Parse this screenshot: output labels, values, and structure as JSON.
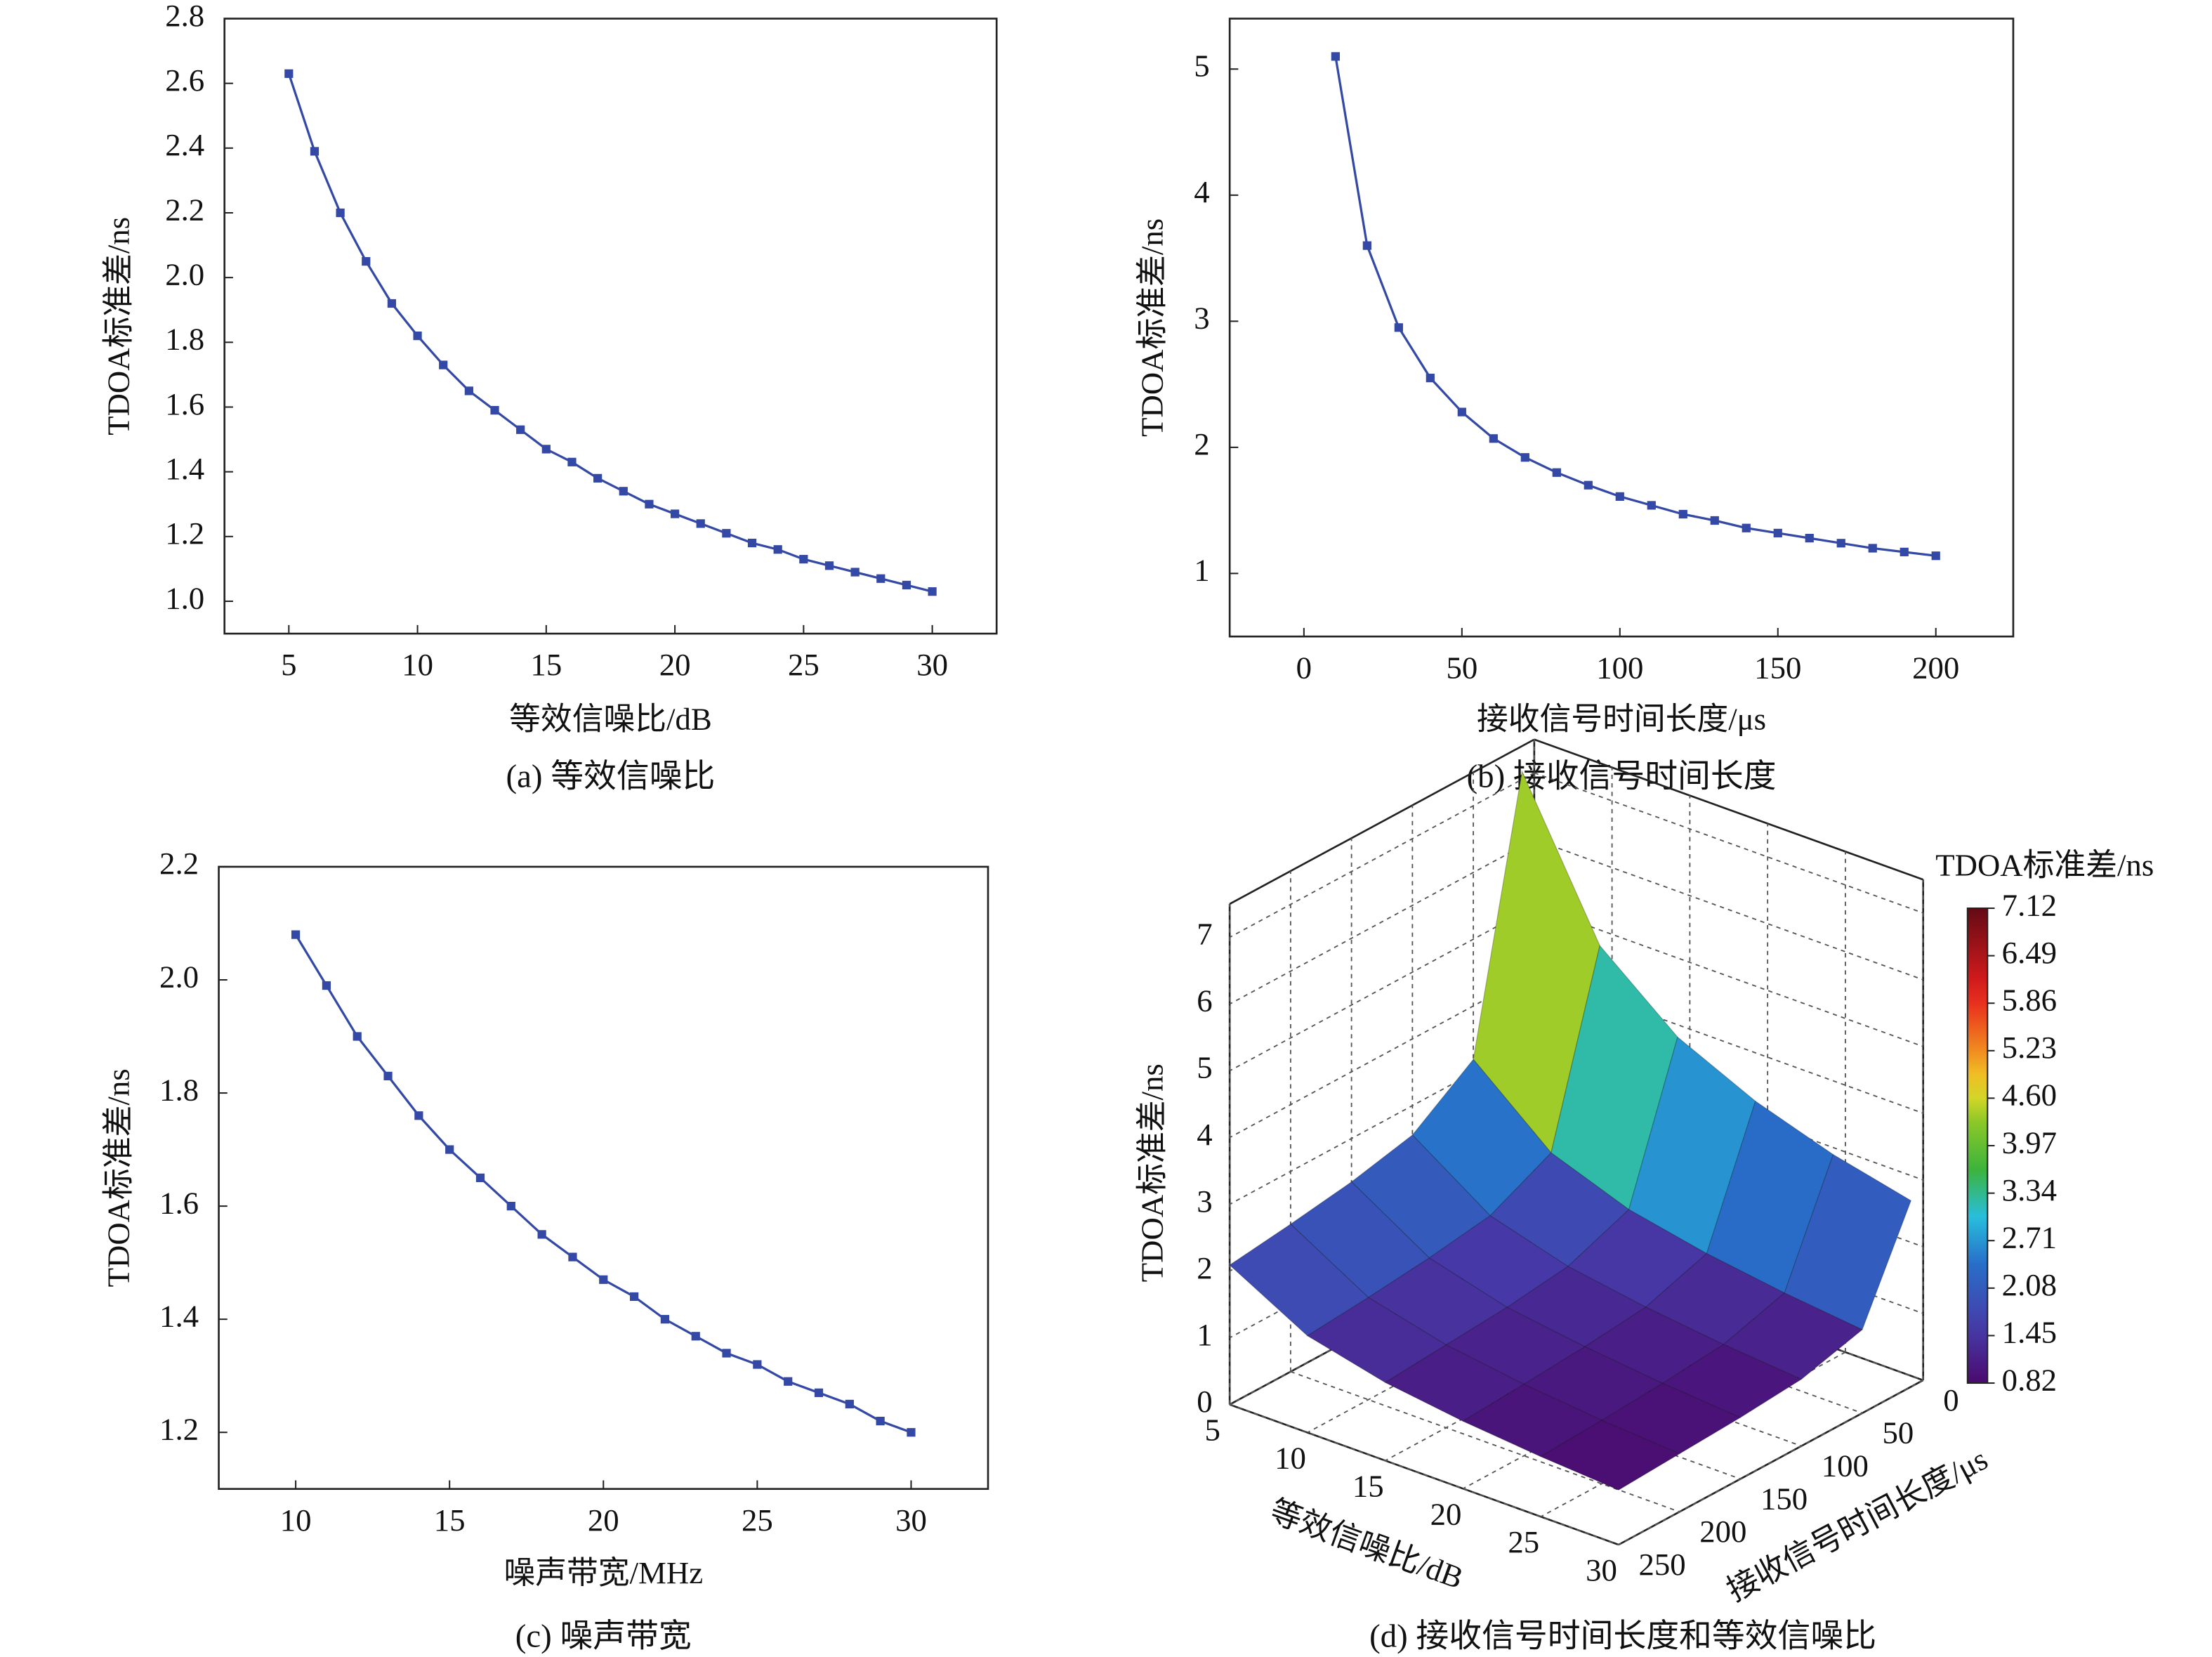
{
  "chart_data": [
    {
      "type": "line",
      "caption": "(a) 等效信噪比",
      "xlabel": "等效信噪比/dB",
      "ylabel": "TDOA标准差/ns",
      "color": "#3449a6",
      "x": [
        5,
        6,
        7,
        8,
        9,
        10,
        11,
        12,
        13,
        14,
        15,
        16,
        17,
        18,
        19,
        20,
        21,
        22,
        23,
        24,
        25,
        26,
        27,
        28,
        29,
        30
      ],
      "values": [
        2.63,
        2.39,
        2.2,
        2.05,
        1.92,
        1.82,
        1.73,
        1.65,
        1.59,
        1.53,
        1.47,
        1.43,
        1.38,
        1.34,
        1.3,
        1.27,
        1.24,
        1.21,
        1.18,
        1.16,
        1.13,
        1.11,
        1.09,
        1.07,
        1.05,
        1.03
      ],
      "xlim": [
        2.5,
        32.5
      ],
      "xticks": [
        5,
        10,
        15,
        20,
        25,
        30
      ],
      "ylim": [
        0.9,
        2.8
      ],
      "yticks": [
        {
          "value": 1,
          "label": "1.0"
        },
        1.2,
        1.4,
        1.6,
        1.8,
        {
          "value": 2,
          "label": "2.0"
        },
        2.2,
        2.4,
        2.6,
        2.8
      ]
    },
    {
      "type": "line",
      "caption": "(b) 接收信号时间长度",
      "xlabel": "接收信号时间长度/μs",
      "ylabel": "TDOA标准差/ns",
      "color": "#3449a6",
      "x": [
        10,
        20,
        30,
        40,
        50,
        60,
        70,
        80,
        90,
        100,
        110,
        120,
        130,
        140,
        150,
        160,
        170,
        180,
        190,
        200
      ],
      "values": [
        5.1,
        3.6,
        2.95,
        2.55,
        2.28,
        2.07,
        1.92,
        1.8,
        1.7,
        1.61,
        1.54,
        1.47,
        1.42,
        1.36,
        1.32,
        1.28,
        1.24,
        1.2,
        1.17,
        1.14
      ],
      "xlim": [
        -23.5,
        224.5
      ],
      "xticks": [
        0,
        50,
        100,
        150,
        200
      ],
      "ylim": [
        0.5,
        5.4
      ],
      "yticks": [
        1,
        2,
        3,
        4,
        5
      ]
    },
    {
      "type": "line",
      "caption": "(c) 噪声带宽",
      "xlabel": "噪声带宽/MHz",
      "ylabel": "TDOA标准差/ns",
      "color": "#3449a6",
      "x": [
        10,
        11,
        12,
        13,
        14,
        15,
        16,
        17,
        18,
        19,
        20,
        21,
        22,
        23,
        24,
        25,
        26,
        27,
        28,
        29,
        30
      ],
      "values": [
        2.08,
        1.99,
        1.9,
        1.83,
        1.76,
        1.7,
        1.65,
        1.6,
        1.55,
        1.51,
        1.47,
        1.44,
        1.4,
        1.37,
        1.34,
        1.32,
        1.29,
        1.27,
        1.25,
        1.22,
        1.2
      ],
      "xlim": [
        7.5,
        32.5
      ],
      "xticks": [
        10,
        15,
        20,
        25,
        30
      ],
      "ylim": [
        1.1,
        2.2
      ],
      "yticks": [
        1.2,
        1.4,
        1.6,
        1.8,
        {
          "value": 2,
          "label": "2.0"
        },
        2.2
      ]
    },
    {
      "type": "surface",
      "caption": "(d) 接收信号时间长度和等效信噪比",
      "xlabel": "等效信噪比/dB",
      "ylabel": "接收信号时间长度/μs",
      "zlabel": "TDOA标准差/ns",
      "colorbar_label": "TDOA标准差/ns",
      "x": [
        5,
        10,
        15,
        20,
        25,
        30
      ],
      "y": [
        10,
        50,
        100,
        150,
        200,
        250
      ],
      "z": [
        [
          7.12,
          3.2,
          2.56,
          2.35,
          2.21,
          2.09
        ],
        [
          4.93,
          2.22,
          1.77,
          1.63,
          1.53,
          1.45
        ],
        [
          3.98,
          1.79,
          1.43,
          1.31,
          1.24,
          1.17
        ],
        [
          3.44,
          1.55,
          1.24,
          1.14,
          1.07,
          1.01
        ],
        [
          3.06,
          1.38,
          1.1,
          1.01,
          0.95,
          0.9
        ],
        [
          2.79,
          1.25,
          1.0,
          0.92,
          0.87,
          0.82
        ]
      ],
      "xlim": [
        5,
        30
      ],
      "xticks": [
        5,
        10,
        15,
        20,
        25,
        30
      ],
      "ylim": [
        0,
        250
      ],
      "yticks": [
        0,
        50,
        100,
        150,
        200,
        250
      ],
      "zlim": [
        0,
        7.5
      ],
      "zticks": [
        0,
        1,
        2,
        3,
        4,
        5,
        6,
        7
      ],
      "clim": [
        0.82,
        7.12
      ],
      "cticks": [
        0.82,
        1.45,
        2.08,
        2.71,
        3.34,
        3.97,
        {
          "value": 4.6,
          "label": "4.60"
        },
        5.23,
        5.86,
        6.49,
        7.12
      ]
    }
  ]
}
